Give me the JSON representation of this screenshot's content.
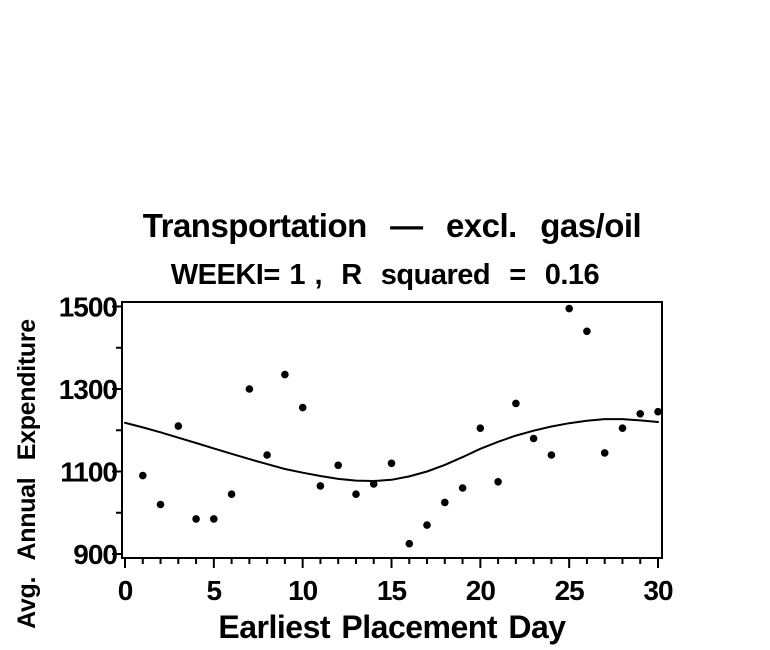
{
  "chart_data": {
    "type": "scatter",
    "title": "Transportation  —  excl.  gas/oil",
    "subtitle": "WEEKI= 1 ,  R  squared  =  0.16",
    "weeki": 1,
    "r_squared": 0.16,
    "xlabel": "Earliest Placement Day",
    "ylabel": "Avg.  Annual  Expenditure",
    "xlim": [
      0,
      30
    ],
    "ylim": [
      900,
      1500
    ],
    "x_ticks_major": [
      0,
      5,
      10,
      15,
      20,
      25,
      30
    ],
    "x_tick_minor_step": 1,
    "y_ticks_major": [
      900,
      1100,
      1300,
      1500
    ],
    "y_tick_minor_step": 100,
    "grid": false,
    "legend": null,
    "colors": {
      "foreground": "#000000",
      "background": "#ffffff"
    },
    "series": [
      {
        "name": "observations",
        "type": "scatter",
        "x": [
          1,
          2,
          3,
          4,
          5,
          6,
          7,
          8,
          9,
          10,
          11,
          12,
          13,
          14,
          15,
          16,
          17,
          18,
          19,
          20,
          21,
          22,
          23,
          24,
          25,
          26,
          27,
          28,
          29,
          30
        ],
        "y": [
          1090,
          1020,
          1210,
          985,
          985,
          1045,
          1300,
          1140,
          1335,
          1255,
          1065,
          1115,
          1045,
          1070,
          1120,
          925,
          970,
          1025,
          1060,
          1205,
          1075,
          1265,
          1180,
          1140,
          1495,
          1440,
          1145,
          1205,
          1240,
          1245
        ]
      },
      {
        "name": "fit-curve",
        "type": "line",
        "x": [
          0,
          1,
          2,
          3,
          4,
          5,
          6,
          7,
          8,
          9,
          10,
          11,
          12,
          13,
          14,
          15,
          16,
          17,
          18,
          19,
          20,
          21,
          22,
          23,
          24,
          25,
          26,
          27,
          28,
          29,
          30
        ],
        "y": [
          1218,
          1207,
          1195,
          1182,
          1169,
          1156,
          1143,
          1130,
          1118,
          1106,
          1097,
          1089,
          1082,
          1078,
          1077,
          1080,
          1088,
          1100,
          1116,
          1135,
          1155,
          1172,
          1187,
          1199,
          1209,
          1217,
          1223,
          1227,
          1227,
          1224,
          1220
        ]
      }
    ]
  }
}
